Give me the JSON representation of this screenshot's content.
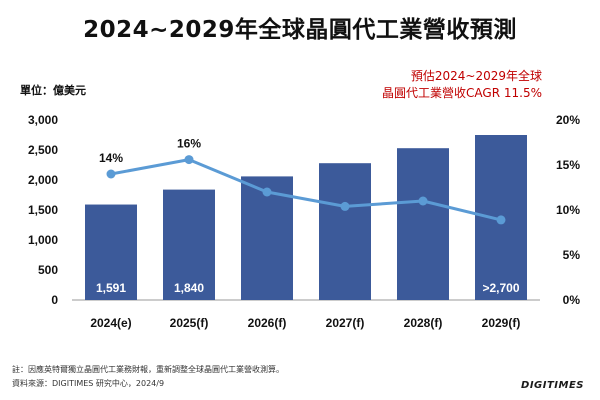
{
  "header": {
    "title": "2024~2029年全球晶圓代工業營收預測",
    "unit": "單位：億美元",
    "cagr_line1": "預估2024~2029年全球",
    "cagr_line2": "晶圓代工業營收CAGR 11.5%"
  },
  "footer": {
    "note": "註：因應英特爾獨立晶圓代工業務財報，重新調整全球晶圓代工業營收測算。",
    "source": "資料來源：DIGITIMES 研究中心，2024/9",
    "brand": "DIGITIMES"
  },
  "colors": {
    "bar": "#3c5a9a",
    "line": "#5b9bd5",
    "accent": "#c00000"
  },
  "chart_data": {
    "type": "bar",
    "categories": [
      "2024(e)",
      "2025(f)",
      "2026(f)",
      "2027(f)",
      "2028(f)",
      "2029(f)"
    ],
    "bar_values": [
      1591,
      1840,
      2060,
      2280,
      2530,
      2750
    ],
    "bar_labels": [
      "1,591",
      "1,840",
      "",
      "",
      "",
      ">2,700"
    ],
    "line_values": [
      14,
      15.6,
      12,
      10.4,
      11,
      8.9
    ],
    "line_labels": [
      "14%",
      "16%",
      "",
      "",
      "",
      ""
    ],
    "y_left": {
      "min": 0,
      "max": 3000,
      "ticks": [
        "0",
        "500",
        "1,000",
        "1,500",
        "2,000",
        "2,500",
        "3,000"
      ]
    },
    "y_right": {
      "min": 0,
      "max": 20,
      "ticks": [
        "0%",
        "5%",
        "10%",
        "15%",
        "20%"
      ]
    }
  }
}
